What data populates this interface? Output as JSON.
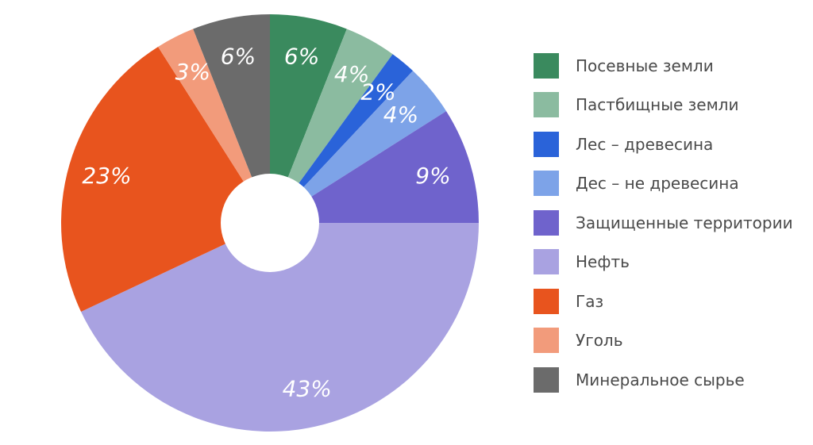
{
  "chart_data": {
    "type": "pie",
    "donut": true,
    "legend_position": "right",
    "categories": [
      "Посевные земли",
      "Пастбищные земли",
      "Лес – древесина",
      "Дес – не древесина",
      "Защищенные территории",
      "Нефть",
      "Газ",
      "Уголь",
      "Минеральное сырье"
    ],
    "values": [
      6,
      4,
      2,
      4,
      9,
      43,
      23,
      3,
      6
    ],
    "labels": [
      "6%",
      "4%",
      "2%",
      "4%",
      "9%",
      "43%",
      "23%",
      "3%",
      "6%"
    ],
    "colors": [
      "#3a8a5e",
      "#8bbba0",
      "#2a63d9",
      "#7da3e8",
      "#6f63cc",
      "#a9a2e1",
      "#e8541e",
      "#f29b7b",
      "#6b6b6b"
    ]
  }
}
